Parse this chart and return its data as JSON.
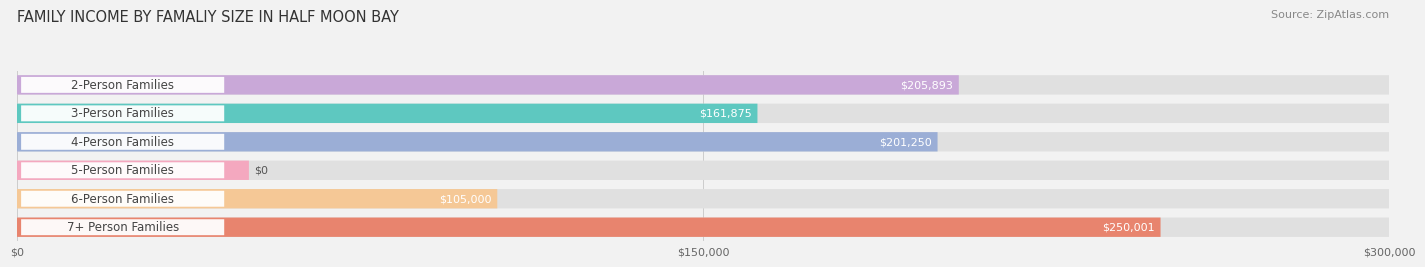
{
  "title": "FAMILY INCOME BY FAMALIY SIZE IN HALF MOON BAY",
  "source": "Source: ZipAtlas.com",
  "categories": [
    "2-Person Families",
    "3-Person Families",
    "4-Person Families",
    "5-Person Families",
    "6-Person Families",
    "7+ Person Families"
  ],
  "values": [
    205893,
    161875,
    201250,
    0,
    105000,
    250001
  ],
  "bar_colors": [
    "#c9a8d8",
    "#5ec8c0",
    "#9baed6",
    "#f4a8bf",
    "#f5c896",
    "#e8846e"
  ],
  "xlim_max": 300000,
  "xticks": [
    0,
    150000,
    300000
  ],
  "xtick_labels": [
    "$0",
    "$150,000",
    "$300,000"
  ],
  "background_color": "#f2f2f2",
  "bar_bg_color": "#e0e0e0",
  "title_fontsize": 10.5,
  "source_fontsize": 8,
  "label_fontsize": 8.5,
  "value_fontsize": 8
}
